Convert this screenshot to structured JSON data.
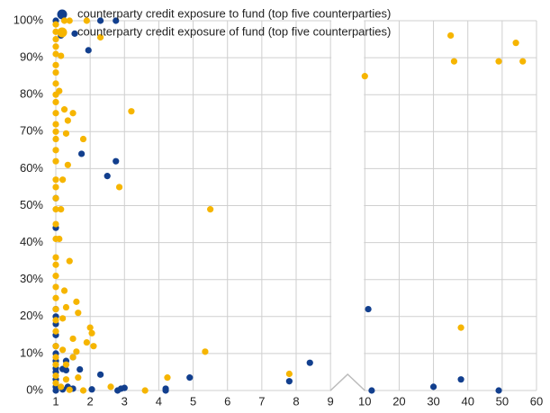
{
  "chart_data": {
    "type": "scatter",
    "xlim": [
      1,
      60
    ],
    "xticks": [
      1,
      2,
      3,
      4,
      5,
      6,
      7,
      8,
      9,
      10,
      20,
      30,
      40,
      50,
      60
    ],
    "x_break": [
      9,
      10
    ],
    "ylim": [
      0,
      100
    ],
    "yticks": [
      {
        "value": 0,
        "label": "0%"
      },
      {
        "value": 10,
        "label": "10%"
      },
      {
        "value": 20,
        "label": "20%"
      },
      {
        "value": 30,
        "label": "30%"
      },
      {
        "value": 40,
        "label": "40%"
      },
      {
        "value": 50,
        "label": "50%"
      },
      {
        "value": 60,
        "label": "60%"
      },
      {
        "value": 70,
        "label": "70%"
      },
      {
        "value": 80,
        "label": "80%"
      },
      {
        "value": 90,
        "label": "90%"
      },
      {
        "value": 100,
        "label": "100%"
      }
    ],
    "grid": true,
    "legend": "top-left",
    "series": [
      {
        "name": "counterparty credit exposure to fund (top five counterparties)",
        "color": "#123f8e",
        "x": [
          1,
          2.3,
          2.75,
          1.15,
          1.55,
          1.95,
          1.75,
          2.75,
          2.5,
          1,
          1,
          1,
          1,
          1,
          1,
          1,
          1,
          1,
          1,
          1,
          1,
          1,
          1,
          1.3,
          1.5,
          1.3,
          1.2,
          1.7,
          1.35,
          1.5,
          1.2,
          2.3,
          2.05,
          2.8,
          2.9,
          3,
          4.2,
          4.2,
          4.9,
          7.8,
          8.4,
          11,
          12,
          30,
          38,
          49
        ],
        "values": [
          100,
          100,
          100,
          96,
          96.5,
          92,
          64,
          62,
          58,
          52,
          44,
          22,
          20,
          18,
          15,
          12,
          10,
          8,
          6,
          5,
          3,
          1,
          0,
          8,
          9,
          5.5,
          5.8,
          5.7,
          1,
          0.5,
          0.3,
          4.3,
          0.3,
          0,
          0.5,
          0.7,
          0.5,
          0,
          3.5,
          2.5,
          7.5,
          22,
          0,
          1,
          3,
          0
        ]
      },
      {
        "name": "counterparty credit exposure of fund (top five counterparties)",
        "color": "#f6b500",
        "x": [
          1,
          1,
          1,
          1,
          1,
          1,
          1,
          1,
          1,
          1,
          1,
          1,
          1,
          1,
          1,
          1,
          1,
          1,
          1,
          1,
          1,
          1,
          1,
          1,
          1,
          1,
          1,
          1,
          1,
          1,
          1,
          1,
          1,
          1,
          1,
          1.25,
          1.4,
          1.9,
          2.3,
          1.15,
          1.1,
          1.25,
          1.5,
          1.35,
          1.3,
          1.8,
          3.2,
          1.35,
          2.85,
          1.2,
          1.15,
          5.5,
          1.1,
          1.4,
          1.25,
          1.6,
          1.3,
          1.65,
          1.2,
          2,
          2.05,
          1.5,
          1.9,
          2.1,
          1.2,
          1.6,
          1.5,
          5.35,
          1.3,
          1.3,
          1.65,
          1.15,
          1.8,
          2.6,
          3.6,
          4.25,
          7.8,
          1.4,
          10,
          35,
          36,
          49,
          54,
          56,
          38
        ],
        "values": [
          99,
          97,
          95,
          93,
          91,
          88,
          86,
          83,
          80,
          78,
          75,
          72,
          70,
          68,
          65,
          62,
          57,
          55,
          52,
          49,
          45,
          41,
          36,
          34,
          31,
          28,
          25,
          22,
          19,
          16,
          12,
          9,
          7,
          4,
          2,
          100,
          100,
          100,
          95.5,
          90.5,
          81,
          76,
          75,
          73,
          69.5,
          68,
          75.5,
          61,
          55,
          57,
          49,
          49,
          41,
          35,
          27,
          24,
          22.5,
          21,
          19.5,
          17,
          15.5,
          14,
          13,
          12,
          11,
          10.5,
          9,
          10.5,
          7,
          3,
          3.5,
          1,
          0,
          1,
          0,
          3.5,
          4.5,
          0.2,
          85,
          96,
          89,
          89,
          94,
          89,
          17
        ]
      }
    ]
  }
}
